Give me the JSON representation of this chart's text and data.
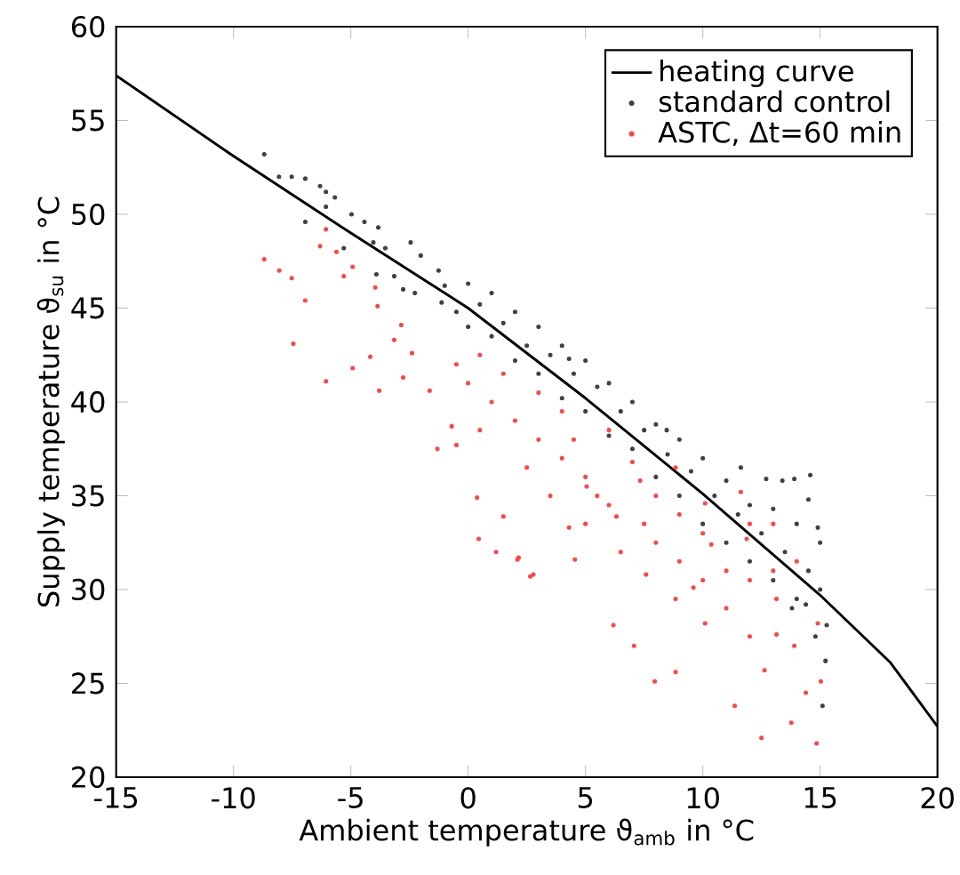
{
  "chart_data": {
    "type": "scatter",
    "xlabel": "Ambient temperature ϑ$_{amb}$ in °C",
    "ylabel": "Supply temperature ϑ$_{su}$ in °C",
    "xlim": [
      -15,
      20
    ],
    "ylim": [
      20,
      60
    ],
    "xticks": [
      -15,
      -10,
      -5,
      0,
      5,
      10,
      15,
      20
    ],
    "yticks": [
      20,
      25,
      30,
      35,
      40,
      45,
      50,
      55,
      60
    ],
    "legend": "top right",
    "grid": false,
    "series": [
      {
        "name": "heating curve",
        "type": "line",
        "color": "#000000",
        "x": [
          -15,
          -10,
          -5,
          0,
          5,
          10,
          15,
          18,
          20
        ],
        "values": [
          57.4,
          53.1,
          49.0,
          45.0,
          40.2,
          35.1,
          29.7,
          26.1,
          22.7
        ]
      },
      {
        "name": "standard control",
        "color": "#404040",
        "x": [
          -8.69,
          -8.06,
          -7.52,
          -6.94,
          -6.31,
          -6.06,
          -5.68,
          -6.06,
          -6.94,
          -4.97,
          -4.42,
          -3.83,
          -5.3,
          -4.04,
          -3.53,
          -2.45,
          -3.15,
          -3.91,
          -2.77,
          -2.27,
          -2.02,
          -1.26,
          -1.13,
          11.62,
          12.7,
          13.39,
          13.9,
          14.58,
          14.9,
          15.28,
          15.23,
          15.1,
          14.39,
          8.46,
          4.3,
          -1,
          -0.5,
          0,
          0,
          0.5,
          1,
          1,
          1.5,
          2,
          2,
          2.5,
          3,
          3,
          3.5,
          4,
          4,
          4.5,
          5,
          5,
          5.5,
          6,
          6,
          6.5,
          7,
          7,
          7.5,
          8,
          8,
          8.5,
          9,
          9,
          9.5,
          10,
          10,
          10.5,
          11,
          11,
          11.5,
          12,
          12,
          12.5,
          13,
          13,
          13.5,
          14,
          14,
          14.5,
          14.5,
          15,
          15,
          14.8,
          13.8
        ],
        "values": [
          53.2,
          52.0,
          52.0,
          51.9,
          51.5,
          51.2,
          50.9,
          50.4,
          49.6,
          50.0,
          49.6,
          49.3,
          48.2,
          48.5,
          48.2,
          48.5,
          46.7,
          46.8,
          46.0,
          45.8,
          47.8,
          47.0,
          45.3,
          36.5,
          35.9,
          35.8,
          35.9,
          36.1,
          33.3,
          28.1,
          26.2,
          23.8,
          29.2,
          38.5,
          42.3,
          46.2,
          44.8,
          46.3,
          44.0,
          45.2,
          43.5,
          45.8,
          44.2,
          42.2,
          44.8,
          43.0,
          41.5,
          44.0,
          42.5,
          40.2,
          43.0,
          41.5,
          39.5,
          42.2,
          40.8,
          38.2,
          41.0,
          39.5,
          37.5,
          40.0,
          38.5,
          36.0,
          38.8,
          37.2,
          35.0,
          38.0,
          36.3,
          33.5,
          37.0,
          35.0,
          32.5,
          35.8,
          34.0,
          31.5,
          34.5,
          33.0,
          30.5,
          34.3,
          32.0,
          29.5,
          33.5,
          31.0,
          34.8,
          30.0,
          32.5,
          27.5,
          29.0
        ]
      },
      {
        "name": "ASTC, Δt=60 min",
        "color": "#ff4444",
        "x": [
          -8.69,
          -8.05,
          -7.52,
          -6.94,
          -7.45,
          -6.06,
          -6.06,
          -6.31,
          -5.61,
          -5.3,
          -4.92,
          -4.92,
          -4.17,
          -3.79,
          -3.96,
          -3.86,
          -3.15,
          -2.77,
          -2.85,
          -2.39,
          -1.64,
          -1.31,
          0.38,
          0.45,
          1.19,
          2.1,
          2.65,
          -0.7,
          -0.5,
          1.5,
          2.15,
          2.78,
          6.19,
          7.07,
          7.95,
          8.84,
          11.36,
          12.5,
          13.77,
          14.85,
          15.03,
          14.9,
          13.9,
          13.14,
          11.62,
          10.36,
          8.84,
          7.58,
          4.55,
          4.3,
          5.05,
          6.32,
          7.33,
          8.84,
          10.1,
          11.87,
          13.14,
          10.1,
          9.6,
          12.63,
          14.39,
          5,
          5.5,
          6,
          4,
          3,
          2,
          1,
          0,
          0.5,
          1.5,
          3,
          4,
          6,
          7,
          8,
          9,
          10,
          11,
          12,
          13,
          14,
          3.5,
          6.5,
          5,
          8,
          9,
          11,
          12,
          10,
          -0.5,
          0.5,
          2.5,
          7.5,
          4.5,
          13,
          12
        ],
        "values": [
          47.6,
          47.0,
          46.6,
          45.4,
          43.1,
          41.1,
          49.2,
          48.3,
          48.0,
          46.7,
          47.2,
          41.8,
          42.4,
          40.6,
          46.1,
          45.1,
          43.3,
          41.3,
          44.1,
          42.6,
          40.6,
          37.5,
          34.9,
          32.7,
          32.0,
          31.6,
          30.7,
          38.7,
          37.7,
          33.9,
          31.7,
          30.8,
          28.1,
          27.0,
          25.1,
          25.6,
          23.8,
          22.1,
          22.9,
          21.8,
          25.1,
          28.2,
          27.0,
          29.5,
          35.2,
          32.4,
          29.5,
          30.8,
          31.6,
          33.3,
          35.5,
          33.9,
          35.8,
          36.5,
          34.6,
          32.7,
          27.6,
          28.2,
          30.1,
          25.7,
          24.5,
          36,
          35,
          34.5,
          37,
          38,
          39,
          40,
          41,
          42.5,
          41.5,
          40.5,
          39.5,
          38.5,
          36.8,
          35,
          34,
          33,
          31,
          30.5,
          31,
          31.5,
          35,
          32,
          33.5,
          32.5,
          31.5,
          29,
          27.5,
          30.5,
          42,
          38.5,
          36.5,
          33.5,
          38,
          33.5,
          33.5
        ]
      }
    ]
  }
}
